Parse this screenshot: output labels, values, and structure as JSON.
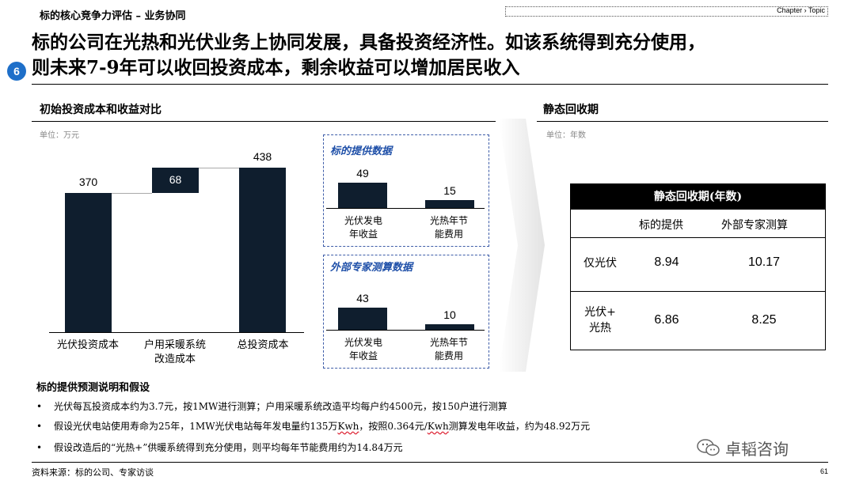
{
  "header": {
    "section": "标的核心竞争力评估 – 业务协同",
    "topic": "Chapter › Topic",
    "badge": "6",
    "headline_line1": "标的公司在光热和光伏业务上协同发展，具备投资经济性。如该系统得到充分使用，",
    "headline_line2": "则未来7-9年可以收回投资成本，剩余收益可以增加居民收入"
  },
  "left_panel": {
    "title": "初始投资成本和收益对比",
    "unit": "单位：万元"
  },
  "right_panel": {
    "title": "静态回收期",
    "unit": "单位：年数"
  },
  "chart_data": [
    {
      "type": "bar",
      "subtype": "waterfall",
      "categories": [
        "光伏投资成本",
        "户用采暖系统改造成本",
        "总投资成本"
      ],
      "values": [
        370,
        68,
        438
      ],
      "ylim": [
        0,
        438
      ]
    },
    {
      "type": "bar",
      "title": "标的提供数据",
      "categories": [
        "光伏发电年收益",
        "光热年节能费用"
      ],
      "values": [
        49,
        15
      ],
      "ylim": [
        0,
        49
      ]
    },
    {
      "type": "bar",
      "title": "外部专家测算数据",
      "categories": [
        "光伏发电年收益",
        "光热年节能费用"
      ],
      "values": [
        43,
        10
      ],
      "ylim": [
        0,
        49
      ]
    }
  ],
  "waterfall_labels": {
    "c0_l1": "光伏投资成本",
    "c1_l1": "户用采暖系统",
    "c1_l2": "改造成本",
    "c2_l1": "总投资成本",
    "v0": "370",
    "v1": "68",
    "v2": "438"
  },
  "box1": {
    "title": "标的提供数据",
    "v0": "49",
    "v1": "15",
    "c0_l1": "光伏发电",
    "c0_l2": "年收益",
    "c1_l1": "光热年节",
    "c1_l2": "能费用"
  },
  "box2": {
    "title": "外部专家测算数据",
    "v0": "43",
    "v1": "10",
    "c0_l1": "光伏发电",
    "c0_l2": "年收益",
    "c1_l1": "光热年节",
    "c1_l2": "能费用"
  },
  "table": {
    "header": "静态回收期(年数)",
    "col1": "标的提供",
    "col2": "外部专家测算",
    "row1_label": "仅光伏",
    "row1_v1": "8.94",
    "row1_v2": "10.17",
    "row2_label_l1": "光伏+",
    "row2_label_l2": "光热",
    "row2_v1": "6.86",
    "row2_v2": "8.25"
  },
  "notes": {
    "title": "标的提供预测说明和假设",
    "n1": "光伏每瓦投资成本约为3.7元，按1MW进行测算；户用采暖系统改造平均每户约4500元，按150户进行测算",
    "n2_a": "假设光伏电站使用寿命为25年，1MW光伏电站每年发电量约135万",
    "n2_b": "Kwh",
    "n2_c": "，按照0.364元/",
    "n2_d": "Kwh",
    "n2_e": "测算发电年收益，约为48.92万元",
    "n3": "假设改造后的“光热+”供暖系统得到充分使用，则平均每年节能费用约为14.84万元"
  },
  "footer": {
    "source": "资料来源：标的公司、专家访谈",
    "page": "61",
    "watermark": "卓韬咨询"
  },
  "colors": {
    "bar": "#0f1e2e",
    "badge": "#1e6fc9",
    "box_title": "#1e4fa8"
  }
}
